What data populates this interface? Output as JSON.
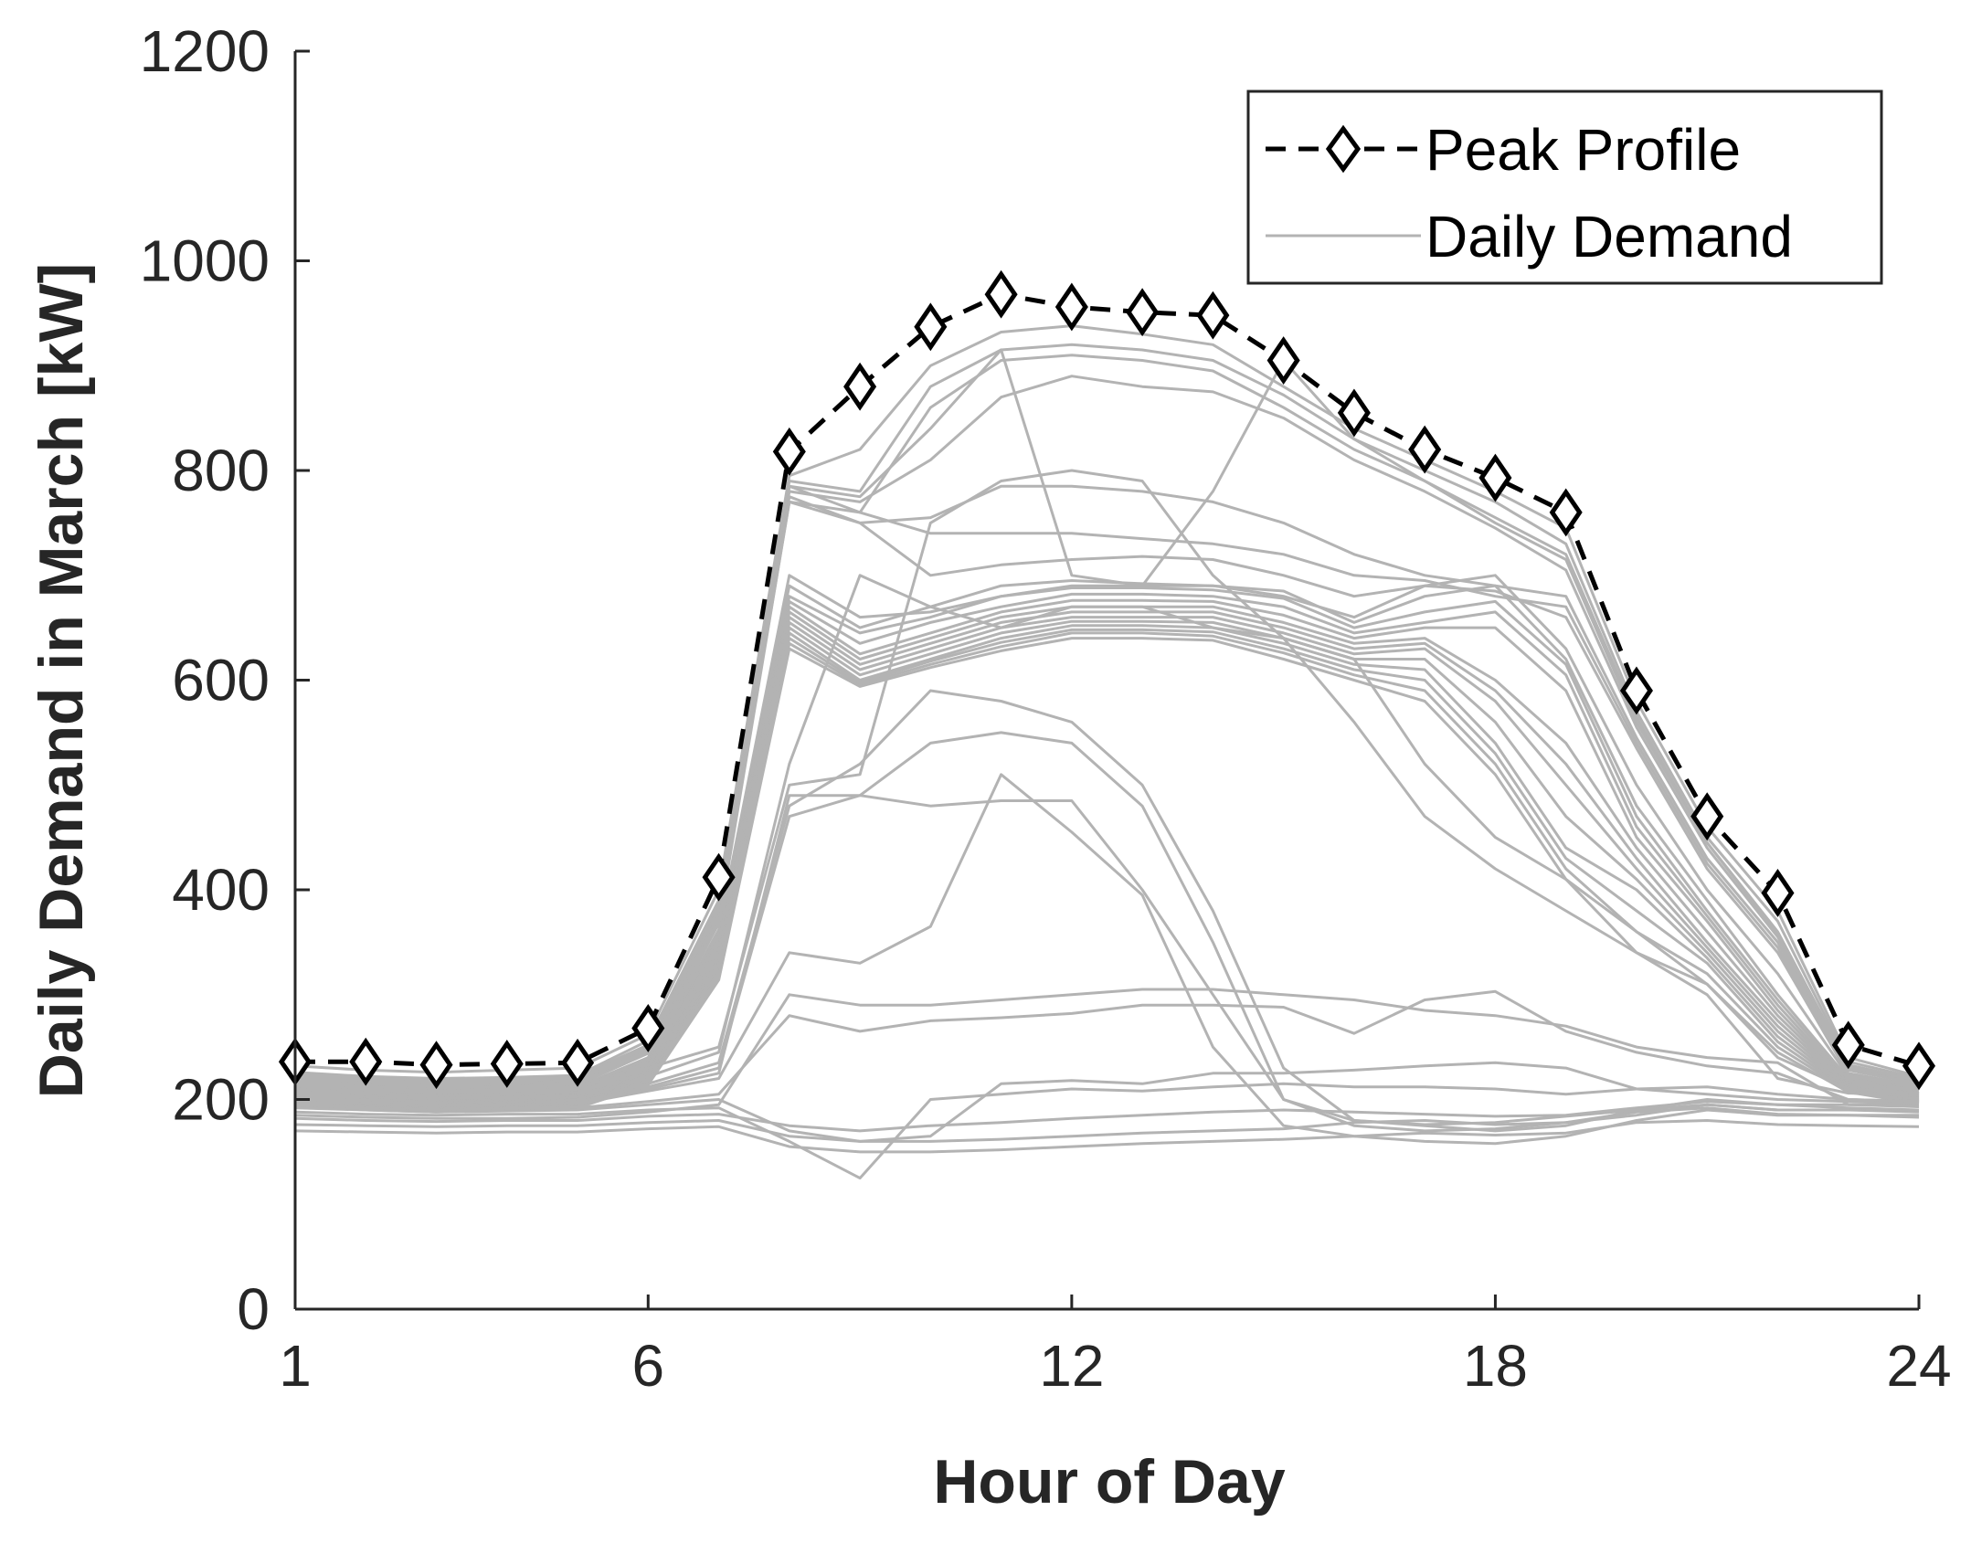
{
  "chart_data": {
    "type": "line",
    "title": "",
    "xlabel": "Hour of Day",
    "ylabel": "Daily Demand in March [kW]",
    "xlim": [
      1,
      24
    ],
    "ylim": [
      0,
      1200
    ],
    "xticks": [
      1,
      6,
      12,
      18,
      24
    ],
    "yticks": [
      0,
      200,
      400,
      600,
      800,
      1000,
      1200
    ],
    "grid": false,
    "legend": {
      "location": "top-right",
      "entries": [
        "Peak Profile",
        "Daily Demand"
      ]
    },
    "colors": {
      "peak": "#000000",
      "daily": "#b3b3b3",
      "axis": "#262626"
    },
    "x": [
      1,
      2,
      3,
      4,
      5,
      6,
      7,
      8,
      9,
      10,
      11,
      12,
      13,
      14,
      15,
      16,
      17,
      18,
      19,
      20,
      21,
      22,
      23,
      24
    ],
    "series": [
      {
        "name": "Peak Profile",
        "style": "dashed-diamond",
        "values": [
          236,
          236,
          233,
          234,
          235,
          268,
          412,
          818,
          880,
          937,
          968,
          956,
          951,
          948,
          905,
          855,
          820,
          793,
          760,
          590,
          470,
          397,
          252,
          232
        ]
      },
      {
        "name": "Daily Demand",
        "values": [
          232,
          228,
          226,
          228,
          230,
          262,
          400,
          795,
          820,
          900,
          932,
          938,
          930,
          920,
          880,
          840,
          810,
          780,
          745,
          580,
          460,
          380,
          240,
          222
        ]
      },
      {
        "name": "Daily Demand",
        "values": [
          226,
          222,
          220,
          221,
          223,
          256,
          390,
          790,
          780,
          880,
          915,
          920,
          915,
          905,
          872,
          830,
          800,
          770,
          730,
          570,
          450,
          370,
          236,
          220
        ]
      },
      {
        "name": "Daily Demand",
        "values": [
          224,
          220,
          218,
          220,
          222,
          252,
          385,
          785,
          760,
          860,
          905,
          910,
          905,
          895,
          860,
          820,
          790,
          755,
          720,
          565,
          445,
          360,
          233,
          218
        ]
      },
      {
        "name": "Daily Demand",
        "values": [
          220,
          216,
          214,
          216,
          218,
          248,
          380,
          780,
          770,
          810,
          870,
          890,
          880,
          875,
          850,
          810,
          780,
          745,
          705,
          555,
          440,
          355,
          230,
          216
        ]
      },
      {
        "name": "Daily Demand",
        "values": [
          222,
          218,
          216,
          218,
          220,
          250,
          382,
          785,
          775,
          840,
          915,
          700,
          690,
          780,
          905,
          830,
          790,
          750,
          715,
          560,
          445,
          358,
          232,
          218
        ]
      },
      {
        "name": "Daily Demand",
        "values": [
          218,
          214,
          212,
          214,
          216,
          246,
          376,
          775,
          750,
          755,
          785,
          785,
          780,
          770,
          750,
          720,
          700,
          690,
          680,
          545,
          430,
          350,
          228,
          215
        ]
      },
      {
        "name": "Daily Demand",
        "values": [
          216,
          212,
          210,
          212,
          214,
          244,
          372,
          770,
          760,
          740,
          740,
          740,
          735,
          730,
          720,
          700,
          695,
          680,
          670,
          540,
          425,
          345,
          225,
          213
        ]
      },
      {
        "name": "Daily Demand",
        "values": [
          214,
          210,
          208,
          210,
          212,
          240,
          368,
          770,
          750,
          700,
          710,
          715,
          718,
          715,
          700,
          680,
          690,
          685,
          660,
          535,
          420,
          340,
          224,
          212
        ]
      },
      {
        "name": "Daily Demand",
        "values": [
          212,
          208,
          206,
          208,
          210,
          238,
          362,
          700,
          660,
          665,
          680,
          690,
          690,
          690,
          680,
          660,
          690,
          700,
          630,
          500,
          400,
          320,
          222,
          210
        ]
      },
      {
        "name": "Daily Demand",
        "values": [
          210,
          206,
          204,
          206,
          208,
          236,
          358,
          690,
          650,
          670,
          690,
          695,
          692,
          690,
          685,
          655,
          680,
          690,
          620,
          480,
          390,
          300,
          220,
          208
        ]
      },
      {
        "name": "Daily Demand",
        "values": [
          208,
          204,
          202,
          204,
          206,
          234,
          354,
          680,
          645,
          660,
          680,
          688,
          688,
          686,
          678,
          650,
          665,
          675,
          615,
          470,
          380,
          295,
          218,
          206
        ]
      },
      {
        "name": "Daily Demand",
        "values": [
          206,
          202,
          200,
          202,
          204,
          232,
          350,
          675,
          635,
          655,
          670,
          682,
          682,
          680,
          670,
          645,
          655,
          665,
          605,
          460,
          375,
          290,
          216,
          205
        ]
      },
      {
        "name": "Daily Demand",
        "values": [
          204,
          200,
          198,
          200,
          202,
          230,
          346,
          670,
          625,
          645,
          665,
          676,
          676,
          675,
          662,
          640,
          650,
          650,
          590,
          450,
          370,
          285,
          215,
          204
        ]
      },
      {
        "name": "Daily Demand",
        "values": [
          202,
          198,
          196,
          198,
          200,
          228,
          342,
          665,
          620,
          640,
          660,
          670,
          670,
          670,
          655,
          635,
          640,
          600,
          540,
          440,
          360,
          280,
          214,
          203
        ]
      },
      {
        "name": "Daily Demand",
        "values": [
          200,
          196,
          194,
          196,
          198,
          226,
          338,
          660,
          615,
          635,
          655,
          665,
          665,
          665,
          650,
          630,
          635,
          590,
          520,
          430,
          350,
          275,
          213,
          202
        ]
      },
      {
        "name": "Daily Demand",
        "values": [
          199,
          195,
          193,
          195,
          197,
          224,
          334,
          655,
          610,
          630,
          650,
          660,
          660,
          660,
          645,
          625,
          630,
          580,
          500,
          420,
          345,
          270,
          212,
          201
        ]
      },
      {
        "name": "Daily Demand",
        "values": [
          198,
          194,
          192,
          194,
          196,
          222,
          330,
          650,
          605,
          625,
          645,
          656,
          656,
          655,
          640,
          620,
          620,
          560,
          470,
          410,
          340,
          265,
          211,
          200
        ]
      },
      {
        "name": "Daily Demand",
        "values": [
          197,
          193,
          191,
          193,
          195,
          220,
          326,
          645,
          600,
          620,
          640,
          652,
          652,
          650,
          635,
          615,
          610,
          540,
          440,
          400,
          335,
          260,
          210,
          199
        ]
      },
      {
        "name": "Daily Demand",
        "values": [
          196,
          192,
          190,
          192,
          194,
          218,
          322,
          640,
          598,
          618,
          636,
          648,
          648,
          646,
          630,
          610,
          600,
          530,
          430,
          380,
          330,
          255,
          209,
          198
        ]
      },
      {
        "name": "Daily Demand",
        "values": [
          195,
          191,
          189,
          191,
          193,
          216,
          318,
          635,
          596,
          615,
          632,
          645,
          645,
          642,
          626,
          605,
          590,
          520,
          420,
          360,
          320,
          250,
          208,
          197
        ]
      },
      {
        "name": "Daily Demand",
        "values": [
          194,
          190,
          188,
          190,
          192,
          214,
          314,
          630,
          594,
          612,
          628,
          640,
          640,
          638,
          620,
          600,
          580,
          510,
          410,
          340,
          310,
          245,
          207,
          196
        ]
      },
      {
        "name": "Daily Demand",
        "values": [
          210,
          206,
          204,
          205,
          207,
          230,
          250,
          500,
          510,
          750,
          790,
          800,
          790,
          700,
          640,
          560,
          470,
          420,
          380,
          340,
          300,
          220,
          206,
          204
        ]
      },
      {
        "name": "Daily Demand",
        "values": [
          205,
          200,
          198,
          199,
          200,
          222,
          245,
          520,
          700,
          670,
          650,
          670,
          670,
          650,
          640,
          620,
          520,
          450,
          410,
          360,
          310,
          240,
          210,
          206
        ]
      },
      {
        "name": "Daily Demand",
        "values": [
          204,
          199,
          197,
          198,
          199,
          215,
          235,
          480,
          520,
          590,
          580,
          560,
          500,
          380,
          230,
          180,
          175,
          170,
          175,
          190,
          200,
          195,
          195,
          195
        ]
      },
      {
        "name": "Daily Demand",
        "values": [
          203,
          198,
          196,
          197,
          198,
          212,
          230,
          470,
          490,
          540,
          550,
          540,
          480,
          350,
          200,
          175,
          170,
          172,
          178,
          185,
          195,
          190,
          190,
          190
        ]
      },
      {
        "name": "Daily Demand",
        "values": [
          202,
          197,
          195,
          196,
          197,
          210,
          225,
          490,
          490,
          480,
          485,
          485,
          400,
          300,
          200,
          180,
          176,
          178,
          184,
          190,
          195,
          190,
          190,
          188
        ]
      },
      {
        "name": "Daily Demand",
        "values": [
          201,
          196,
          194,
          195,
          196,
          208,
          220,
          340,
          330,
          365,
          510,
          455,
          395,
          250,
          175,
          165,
          160,
          158,
          165,
          180,
          190,
          185,
          185,
          185
        ]
      },
      {
        "name": "Daily Demand",
        "values": [
          195,
          192,
          190,
          191,
          192,
          198,
          205,
          280,
          265,
          275,
          278,
          282,
          290,
          290,
          288,
          263,
          295,
          303,
          265,
          245,
          232,
          225,
          200,
          198
        ]
      },
      {
        "name": "Daily Demand",
        "values": [
          185,
          183,
          182,
          182,
          183,
          188,
          195,
          300,
          290,
          290,
          295,
          300,
          305,
          305,
          300,
          295,
          285,
          280,
          270,
          250,
          240,
          235,
          195,
          193
        ]
      },
      {
        "name": "Daily Demand",
        "values": [
          192,
          190,
          188,
          189,
          190,
          195,
          200,
          170,
          160,
          165,
          215,
          218,
          215,
          225,
          225,
          228,
          232,
          235,
          230,
          210,
          205,
          200,
          198,
          196
        ]
      },
      {
        "name": "Daily Demand",
        "values": [
          188,
          186,
          185,
          186,
          186,
          190,
          192,
          160,
          125,
          200,
          205,
          210,
          208,
          212,
          215,
          212,
          212,
          210,
          205,
          210,
          212,
          205,
          200,
          198
        ]
      },
      {
        "name": "Daily Demand",
        "values": [
          182,
          180,
          179,
          180,
          180,
          184,
          186,
          175,
          170,
          175,
          178,
          182,
          185,
          188,
          190,
          188,
          186,
          184,
          185,
          192,
          198,
          195,
          192,
          190
        ]
      },
      {
        "name": "Daily Demand",
        "values": [
          176,
          175,
          174,
          175,
          175,
          178,
          180,
          165,
          160,
          160,
          162,
          165,
          168,
          170,
          172,
          178,
          180,
          176,
          178,
          188,
          192,
          186,
          185,
          183
        ]
      },
      {
        "name": "Daily Demand",
        "values": [
          170,
          169,
          168,
          169,
          169,
          172,
          174,
          155,
          150,
          150,
          152,
          155,
          158,
          160,
          162,
          165,
          168,
          166,
          168,
          178,
          180,
          176,
          175,
          174
        ]
      }
    ]
  }
}
